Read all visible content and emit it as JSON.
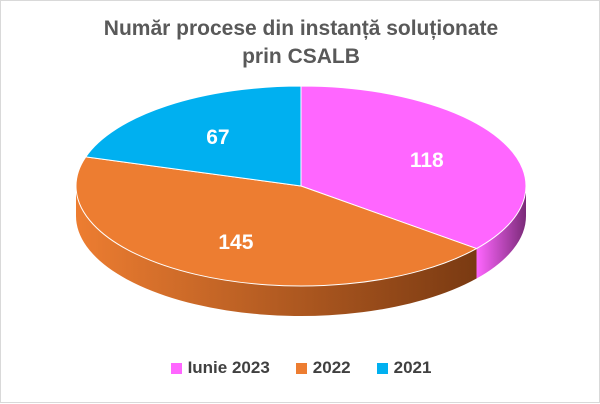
{
  "chart_data": {
    "type": "pie",
    "variant": "3d",
    "title_lines": [
      "Număr procese din instanță soluționate",
      "prin CSALB"
    ],
    "categories": [
      "Iunie 2023",
      "2022",
      "2021"
    ],
    "values": [
      118,
      145,
      67
    ],
    "colors": [
      "#ff66ff",
      "#ed7d31",
      "#00b0f0"
    ],
    "side_colors": [
      "#7a2a78",
      "#7a3a12",
      "#005a7a"
    ],
    "legend_position": "bottom"
  }
}
